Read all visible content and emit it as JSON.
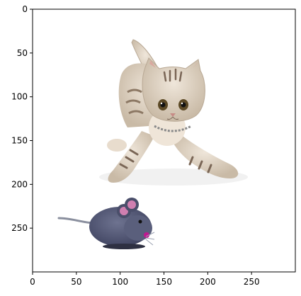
{
  "figure": {
    "image_subject": "kitten-and-toy-mouse",
    "axes": {
      "xlim": [
        0,
        300
      ],
      "ylim": [
        0,
        300
      ],
      "y_inverted": true,
      "x_ticks": [
        {
          "value": 0,
          "label": "0"
        },
        {
          "value": 50,
          "label": "50"
        },
        {
          "value": 100,
          "label": "100"
        },
        {
          "value": 150,
          "label": "150"
        },
        {
          "value": 200,
          "label": "200"
        },
        {
          "value": 250,
          "label": "250"
        }
      ],
      "y_ticks": [
        {
          "value": 0,
          "label": "0"
        },
        {
          "value": 50,
          "label": "50"
        },
        {
          "value": 100,
          "label": "100"
        },
        {
          "value": 150,
          "label": "150"
        },
        {
          "value": 200,
          "label": "200"
        },
        {
          "value": 250,
          "label": "250"
        }
      ]
    },
    "colors": {
      "kitten_fur": "#d8ccbc",
      "kitten_stripes": "#7a6656",
      "mouse_fur": "#555a76",
      "mouse_ear_inner": "#d07fb0",
      "mouse_nose": "#c01890"
    }
  }
}
